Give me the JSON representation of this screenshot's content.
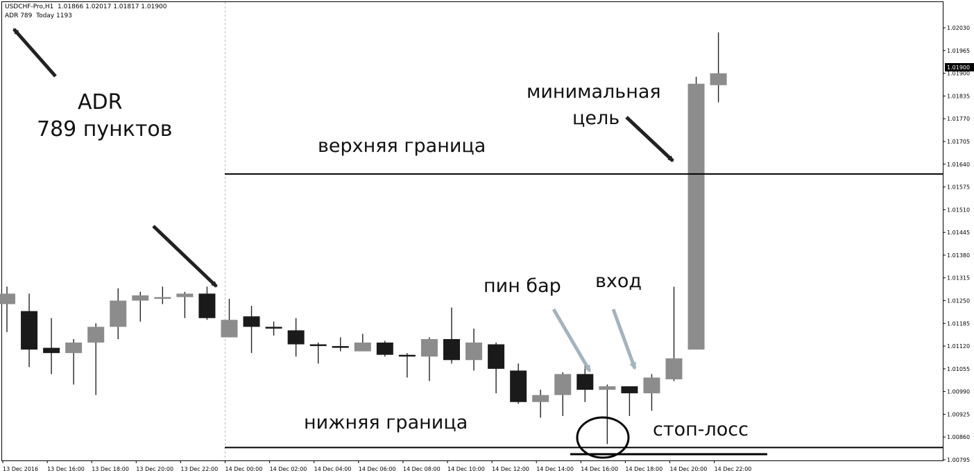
{
  "header": {
    "symbol_line": "USDCHF-Pro,H1  1.01866 1.02017 1.01817 1.01900",
    "adr_line": "ADR 789  Today 1193"
  },
  "annotations": {
    "adr_title": "ADR",
    "adr_points": "789 пунктов",
    "upper_bound": "верхняя граница",
    "lower_bound": "нижняя граница",
    "min_target_1": "минимальная",
    "min_target_2": "цель",
    "pin_bar": "пин бар",
    "entry": "вход",
    "stop_loss": "стоп-лосс"
  },
  "colors": {
    "bull": "#8c8c8c",
    "bear": "#1a1a1a",
    "wick": "#222222",
    "level_line": "#000000",
    "arrow_black": "#222222",
    "arrow_grey": "#a4b3bd",
    "price_tag_bg": "#000000"
  },
  "chart_data": {
    "type": "candlestick",
    "symbol": "USDCHF-Pro",
    "timeframe": "H1",
    "ylim": [
      1.00795,
      1.0205
    ],
    "y_ticks": [
      "1.02030",
      "1.01965",
      "1.01900",
      "1.01835",
      "1.01770",
      "1.01705",
      "1.01640",
      "1.01575",
      "1.01510",
      "1.01445",
      "1.01380",
      "1.01315",
      "1.01250",
      "1.01185",
      "1.01120",
      "1.01055",
      "1.00990",
      "1.00925",
      "1.00860",
      "1.00795"
    ],
    "current_price": "1.01900",
    "x_labels": [
      "13 Dec 2016",
      "13 Dec 16:00",
      "13 Dec 18:00",
      "13 Dec 20:00",
      "13 Dec 22:00",
      "14 Dec 00:00",
      "14 Dec 02:00",
      "14 Dec 04:00",
      "14 Dec 06:00",
      "14 Dec 08:00",
      "14 Dec 10:00",
      "14 Dec 12:00",
      "14 Dec 14:00",
      "14 Dec 16:00",
      "14 Dec 18:00",
      "14 Dec 20:00",
      "14 Dec 22:00"
    ],
    "candles": [
      {
        "o": 1.0124,
        "h": 1.0129,
        "l": 1.0116,
        "c": 1.0127
      },
      {
        "o": 1.0122,
        "h": 1.0127,
        "l": 1.0106,
        "c": 1.0111
      },
      {
        "o": 1.01115,
        "h": 1.012,
        "l": 1.0104,
        "c": 1.011
      },
      {
        "o": 1.011,
        "h": 1.0114,
        "l": 1.0101,
        "c": 1.0113
      },
      {
        "o": 1.0113,
        "h": 1.01185,
        "l": 1.0098,
        "c": 1.01175
      },
      {
        "o": 1.01175,
        "h": 1.01285,
        "l": 1.0114,
        "c": 1.0125
      },
      {
        "o": 1.0125,
        "h": 1.01275,
        "l": 1.0119,
        "c": 1.01265
      },
      {
        "o": 1.0126,
        "h": 1.0129,
        "l": 1.0124,
        "c": 1.0126
      },
      {
        "o": 1.0126,
        "h": 1.01275,
        "l": 1.012,
        "c": 1.0127
      },
      {
        "o": 1.0127,
        "h": 1.0129,
        "l": 1.01195,
        "c": 1.012
      },
      {
        "o": 1.01145,
        "h": 1.01255,
        "l": 1.01145,
        "c": 1.01195
      },
      {
        "o": 1.01205,
        "h": 1.01235,
        "l": 1.011,
        "c": 1.01175
      },
      {
        "o": 1.01175,
        "h": 1.0119,
        "l": 1.0115,
        "c": 1.0117
      },
      {
        "o": 1.01165,
        "h": 1.012,
        "l": 1.0109,
        "c": 1.01125
      },
      {
        "o": 1.01125,
        "h": 1.0113,
        "l": 1.0107,
        "c": 1.0112
      },
      {
        "o": 1.0112,
        "h": 1.01145,
        "l": 1.01105,
        "c": 1.01115
      },
      {
        "o": 1.01105,
        "h": 1.01155,
        "l": 1.01105,
        "c": 1.0113
      },
      {
        "o": 1.0113,
        "h": 1.01135,
        "l": 1.0109,
        "c": 1.01095
      },
      {
        "o": 1.01095,
        "h": 1.011,
        "l": 1.0103,
        "c": 1.0109
      },
      {
        "o": 1.0109,
        "h": 1.01145,
        "l": 1.0102,
        "c": 1.0114
      },
      {
        "o": 1.0114,
        "h": 1.0123,
        "l": 1.0107,
        "c": 1.0108
      },
      {
        "o": 1.0108,
        "h": 1.0117,
        "l": 1.0105,
        "c": 1.0113
      },
      {
        "o": 1.01125,
        "h": 1.0113,
        "l": 1.00985,
        "c": 1.01055
      },
      {
        "o": 1.0105,
        "h": 1.0107,
        "l": 1.00955,
        "c": 1.0096
      },
      {
        "o": 1.0096,
        "h": 1.00995,
        "l": 1.00915,
        "c": 1.0098
      },
      {
        "o": 1.0098,
        "h": 1.01045,
        "l": 1.0092,
        "c": 1.0104
      },
      {
        "o": 1.0104,
        "h": 1.01075,
        "l": 1.0096,
        "c": 1.00995
      },
      {
        "o": 1.00995,
        "h": 1.0101,
        "l": 1.0084,
        "c": 1.01005
      },
      {
        "o": 1.01005,
        "h": 1.01005,
        "l": 1.0092,
        "c": 1.00985
      },
      {
        "o": 1.00985,
        "h": 1.0104,
        "l": 1.00935,
        "c": 1.0103
      },
      {
        "o": 1.01025,
        "h": 1.0129,
        "l": 1.0102,
        "c": 1.01085
      },
      {
        "o": 1.0111,
        "h": 1.0189,
        "l": 1.0111,
        "c": 1.0187
      },
      {
        "o": 1.01866,
        "h": 1.02017,
        "l": 1.01817,
        "c": 1.019
      }
    ],
    "levels": {
      "upper": 1.01612,
      "lower": 1.0083
    }
  }
}
